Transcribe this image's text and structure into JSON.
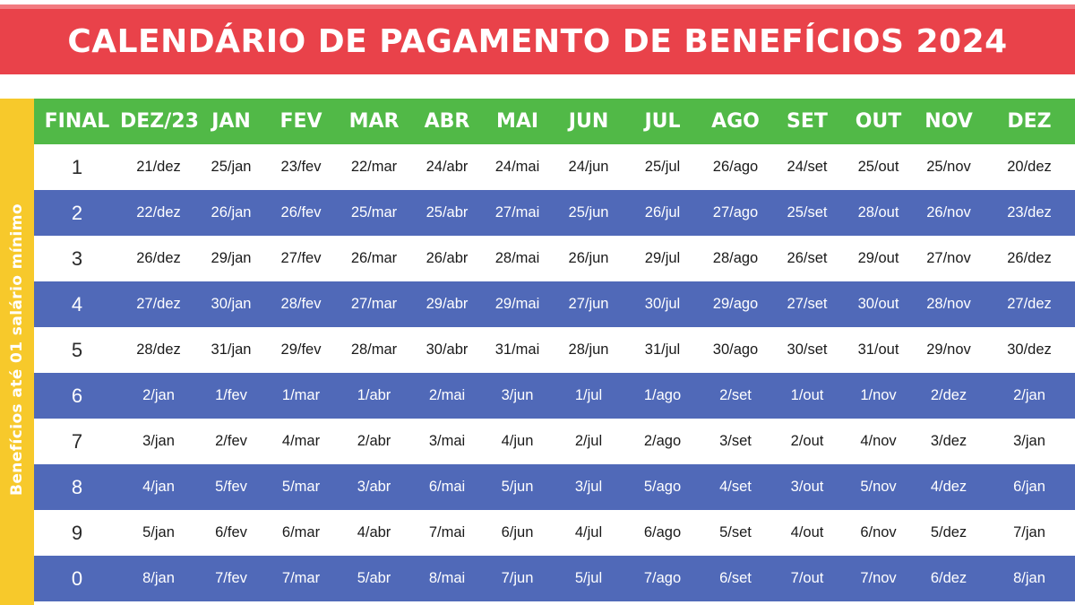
{
  "title": "CALENDÁRIO DE PAGAMENTO DE BENEFÍCIOS 2024",
  "side_label": "Benefícios até 01 salário mínimo",
  "colors": {
    "banner": "#e9424a",
    "header": "#51b947",
    "row_blue": "#5069b8",
    "side": "#f7c92b"
  },
  "table": {
    "headers": [
      "FINAL",
      "DEZ/23",
      "JAN",
      "FEV",
      "MAR",
      "ABR",
      "MAI",
      "JUN",
      "JUL",
      "AGO",
      "SET",
      "OUT",
      "NOV",
      "DEZ"
    ],
    "rows": [
      {
        "final": "1",
        "dates": [
          "21/dez",
          "25/jan",
          "23/fev",
          "22/mar",
          "24/abr",
          "24/mai",
          "24/jun",
          "25/jul",
          "26/ago",
          "24/set",
          "25/out",
          "25/nov",
          "20/dez"
        ]
      },
      {
        "final": "2",
        "dates": [
          "22/dez",
          "26/jan",
          "26/fev",
          "25/mar",
          "25/abr",
          "27/mai",
          "25/jun",
          "26/jul",
          "27/ago",
          "25/set",
          "28/out",
          "26/nov",
          "23/dez"
        ]
      },
      {
        "final": "3",
        "dates": [
          "26/dez",
          "29/jan",
          "27/fev",
          "26/mar",
          "26/abr",
          "28/mai",
          "26/jun",
          "29/jul",
          "28/ago",
          "26/set",
          "29/out",
          "27/nov",
          "26/dez"
        ]
      },
      {
        "final": "4",
        "dates": [
          "27/dez",
          "30/jan",
          "28/fev",
          "27/mar",
          "29/abr",
          "29/mai",
          "27/jun",
          "30/jul",
          "29/ago",
          "27/set",
          "30/out",
          "28/nov",
          "27/dez"
        ]
      },
      {
        "final": "5",
        "dates": [
          "28/dez",
          "31/jan",
          "29/fev",
          "28/mar",
          "30/abr",
          "31/mai",
          "28/jun",
          "31/jul",
          "30/ago",
          "30/set",
          "31/out",
          "29/nov",
          "30/dez"
        ]
      },
      {
        "final": "6",
        "dates": [
          "2/jan",
          "1/fev",
          "1/mar",
          "1/abr",
          "2/mai",
          "3/jun",
          "1/jul",
          "1/ago",
          "2/set",
          "1/out",
          "1/nov",
          "2/dez",
          "2/jan"
        ]
      },
      {
        "final": "7",
        "dates": [
          "3/jan",
          "2/fev",
          "4/mar",
          "2/abr",
          "3/mai",
          "4/jun",
          "2/jul",
          "2/ago",
          "3/set",
          "2/out",
          "4/nov",
          "3/dez",
          "3/jan"
        ]
      },
      {
        "final": "8",
        "dates": [
          "4/jan",
          "5/fev",
          "5/mar",
          "3/abr",
          "6/mai",
          "5/jun",
          "3/jul",
          "5/ago",
          "4/set",
          "3/out",
          "5/nov",
          "4/dez",
          "6/jan"
        ]
      },
      {
        "final": "9",
        "dates": [
          "5/jan",
          "6/fev",
          "6/mar",
          "4/abr",
          "7/mai",
          "6/jun",
          "4/jul",
          "6/ago",
          "5/set",
          "4/out",
          "6/nov",
          "5/dez",
          "7/jan"
        ]
      },
      {
        "final": "0",
        "dates": [
          "8/jan",
          "7/fev",
          "7/mar",
          "5/abr",
          "8/mai",
          "7/jun",
          "5/jul",
          "7/ago",
          "6/set",
          "7/out",
          "7/nov",
          "6/dez",
          "8/jan"
        ]
      }
    ]
  }
}
